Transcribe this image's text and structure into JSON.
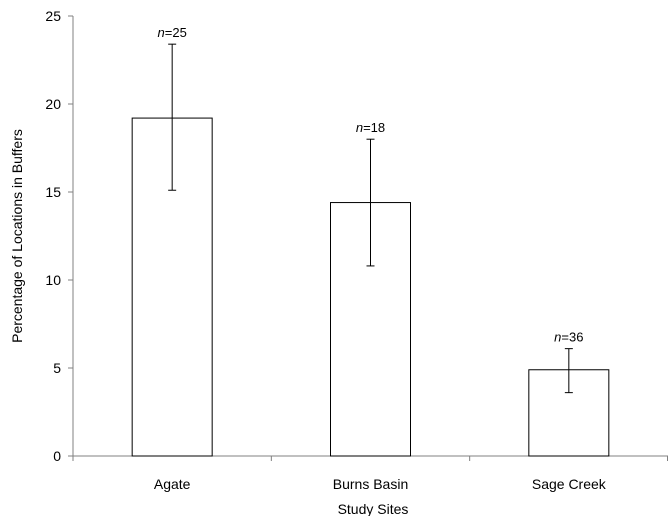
{
  "chart_data": {
    "type": "bar",
    "categories": [
      "Agate",
      "Burns Basin",
      "Sage Creek"
    ],
    "values": [
      19.2,
      14.4,
      4.9
    ],
    "error_low": [
      15.1,
      10.8,
      3.6
    ],
    "error_high": [
      23.4,
      18.0,
      6.1
    ],
    "n_labels": [
      {
        "prefix": "n",
        "value": "=25"
      },
      {
        "prefix": "n",
        "value": "=18"
      },
      {
        "prefix": "n",
        "value": "=36"
      }
    ],
    "xlabel": "Study Sites",
    "ylabel": "Percentage of Locations in Buffers",
    "ylim": [
      0,
      25
    ],
    "yticks": [
      "0",
      "5",
      "10",
      "15",
      "20",
      "25"
    ],
    "grid": false,
    "bar_fill": "#ffffff",
    "bar_stroke": "#000000",
    "axis_color": "#808080"
  }
}
